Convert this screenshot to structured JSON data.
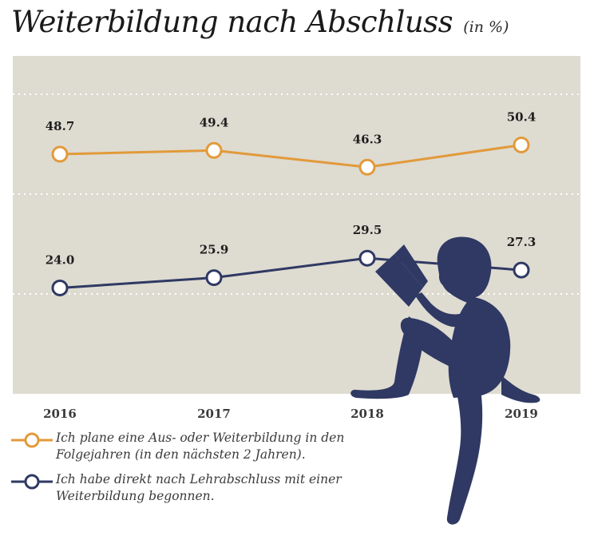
{
  "title": "Weiterbildung nach Abschluss",
  "unit": "(in %)",
  "colors": {
    "background": "#dedbd1",
    "orange": "#e29a3a",
    "navy": "#2f3963",
    "gridline": "#ffffff"
  },
  "chart_data": {
    "type": "line",
    "categories": [
      "2016",
      "2017",
      "2018",
      "2019"
    ],
    "series": [
      {
        "name": "Ich plane eine Aus- oder Weiterbildung in den Folgejahren (in den nächsten 2 Jahren).",
        "color": "#e29a3a",
        "values": [
          48.7,
          49.4,
          46.3,
          50.4
        ],
        "labels": [
          "48.7",
          "49.4",
          "46.3",
          "50.4"
        ]
      },
      {
        "name": "Ich habe direkt nach Lehrabschluss mit einer Weiterbildung begonnen.",
        "color": "#2f3963",
        "values": [
          24.0,
          25.9,
          29.5,
          27.3
        ],
        "labels": [
          "24.0",
          "25.9",
          "29.5",
          "27.3"
        ]
      }
    ],
    "grid": true,
    "legend_position": "bottom-left"
  },
  "legend": [
    {
      "text_line1": "Ich plane eine Aus- oder Weiterbildung in den",
      "text_line2": "Folgejahren (in den nächsten 2 Jahren).",
      "icon": "circle-marker-orange"
    },
    {
      "text_line1": "Ich habe direkt nach Lehrabschluss mit einer",
      "text_line2": "Weiterbildung begonnen.",
      "icon": "circle-marker-navy"
    }
  ],
  "illustration": {
    "icon": "reading-woman-silhouette"
  }
}
